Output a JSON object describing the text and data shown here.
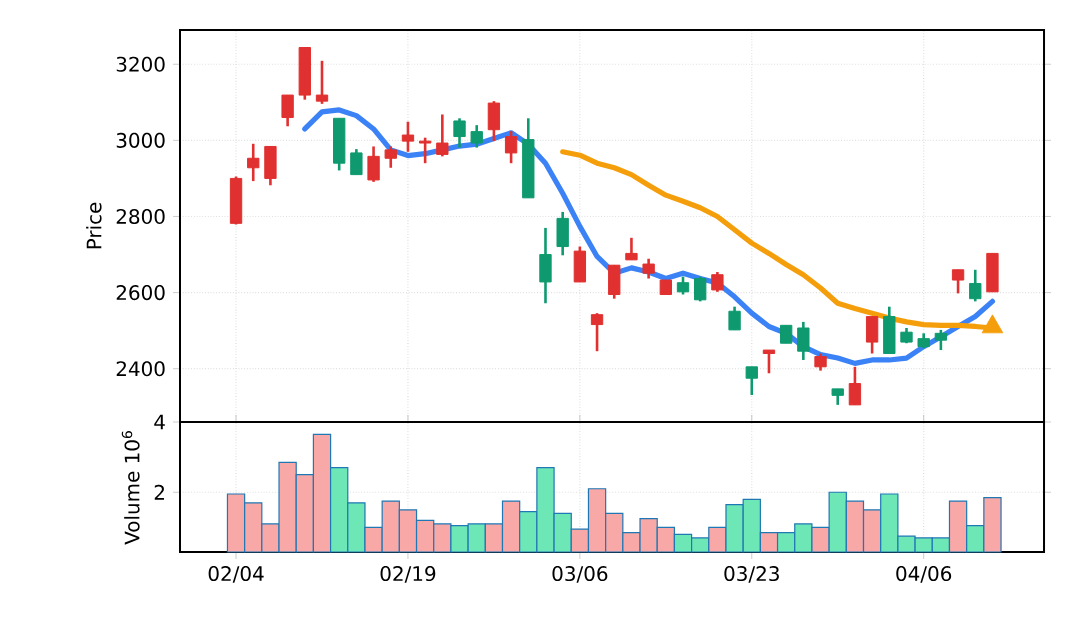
{
  "chart_data": [
    {
      "type": "candlestick",
      "categories": [
        null,
        null,
        null,
        null,
        null,
        null,
        null,
        null,
        null,
        null,
        null,
        null,
        null,
        null,
        null,
        null,
        null,
        null,
        null,
        null,
        null,
        null,
        null,
        null,
        null,
        null,
        null,
        null,
        null,
        null,
        null,
        null,
        null,
        null,
        null,
        null,
        null,
        null,
        null,
        null,
        null,
        null,
        null,
        null,
        null
      ],
      "ohlc": [
        [
          2782,
          2905,
          2779,
          2900
        ],
        [
          2928,
          2991,
          2893,
          2953
        ],
        [
          2900,
          2984,
          2882,
          2984
        ],
        [
          3060,
          3119,
          3037,
          3119
        ],
        [
          3119,
          3244,
          3107,
          3244
        ],
        [
          3103,
          3209,
          3096,
          3119
        ],
        [
          3058,
          3058,
          2921,
          2940
        ],
        [
          2967,
          2977,
          2910,
          2910
        ],
        [
          2896,
          2984,
          2891,
          2958
        ],
        [
          2953,
          2984,
          2928,
          2975
        ],
        [
          2998,
          3049,
          2970,
          3014
        ],
        [
          2993,
          3007,
          2940,
          2998
        ],
        [
          2963,
          3068,
          2958,
          2993
        ],
        [
          3051,
          3058,
          2981,
          3010
        ],
        [
          3023,
          3040,
          2981,
          2993
        ],
        [
          3028,
          3103,
          2998,
          3098
        ],
        [
          2967,
          3024,
          2940,
          3010
        ],
        [
          3002,
          3058,
          2849,
          2849
        ],
        [
          2700,
          2770,
          2572,
          2628
        ],
        [
          2795,
          2812,
          2698,
          2721
        ],
        [
          2628,
          2721,
          2628,
          2709
        ],
        [
          2516,
          2546,
          2446,
          2542
        ],
        [
          2595,
          2672,
          2584,
          2672
        ],
        [
          2686,
          2744,
          2686,
          2703
        ],
        [
          2651,
          2689,
          2637,
          2675
        ],
        [
          2595,
          2633,
          2595,
          2633
        ],
        [
          2626,
          2642,
          2595,
          2602
        ],
        [
          2637,
          2642,
          2577,
          2581
        ],
        [
          2607,
          2654,
          2602,
          2647
        ],
        [
          2551,
          2563,
          2502,
          2502
        ],
        [
          2405,
          2405,
          2331,
          2375
        ],
        [
          2440,
          2449,
          2388,
          2449
        ],
        [
          2514,
          2514,
          2467,
          2467
        ],
        [
          2507,
          2523,
          2423,
          2446
        ],
        [
          2405,
          2440,
          2395,
          2432
        ],
        [
          2347,
          2347,
          2305,
          2330
        ],
        [
          2305,
          2405,
          2305,
          2361
        ],
        [
          2470,
          2537,
          2440,
          2537
        ],
        [
          2537,
          2563,
          2440,
          2440
        ],
        [
          2496,
          2507,
          2467,
          2470
        ],
        [
          2479,
          2493,
          2454,
          2458
        ],
        [
          2493,
          2502,
          2449,
          2475
        ],
        [
          2633,
          2660,
          2598,
          2660
        ],
        [
          2624,
          2660,
          2577,
          2584
        ],
        [
          2602,
          2703,
          2602,
          2703
        ]
      ],
      "colors": [
        "#e0302f",
        "#e0302f",
        "#e0302f",
        "#e0302f",
        "#e0302f",
        "#e0302f",
        "#0e9a6e",
        "#0e9a6e",
        "#e0302f",
        "#e0302f",
        "#e0302f",
        "#e0302f",
        "#e0302f",
        "#0e9a6e",
        "#0e9a6e",
        "#e0302f",
        "#e0302f",
        "#0e9a6e",
        "#0e9a6e",
        "#0e9a6e",
        "#e0302f",
        "#e0302f",
        "#e0302f",
        "#e0302f",
        "#e0302f",
        "#e0302f",
        "#0e9a6e",
        "#0e9a6e",
        "#e0302f",
        "#0e9a6e",
        "#0e9a6e",
        "#e0302f",
        "#0e9a6e",
        "#0e9a6e",
        "#e0302f",
        "#0e9a6e",
        "#e0302f",
        "#e0302f",
        "#0e9a6e",
        "#0e9a6e",
        "#0e9a6e",
        "#0e9a6e",
        "#e0302f",
        "#0e9a6e",
        "#e0302f"
      ],
      "ylabel": "Price",
      "ylim": [
        2260,
        3290
      ],
      "yticks": [
        2400,
        2600,
        2800,
        3000,
        3200
      ],
      "grid": true,
      "tick_labels": "y",
      "series": [
        {
          "type": "line",
          "color": "#3b82f6",
          "values": [
            null,
            null,
            null,
            null,
            3030,
            3075,
            3080,
            3065,
            3030,
            2975,
            2960,
            2965,
            2975,
            2985,
            2990,
            3005,
            3020,
            2990,
            2940,
            2861,
            2774,
            2695,
            2651,
            2665,
            2654,
            2637,
            2651,
            2637,
            2625,
            2589,
            2546,
            2511,
            2493,
            2458,
            2437,
            2428,
            2414,
            2423,
            2423,
            2428,
            2458,
            2484,
            2511,
            2537,
            2577
          ]
        },
        {
          "type": "line",
          "color": "#f59e0b",
          "values": [
            null,
            null,
            null,
            null,
            null,
            null,
            null,
            null,
            null,
            null,
            null,
            null,
            null,
            null,
            null,
            null,
            null,
            null,
            null,
            2970,
            2961,
            2940,
            2928,
            2910,
            2882,
            2856,
            2840,
            2823,
            2800,
            2765,
            2730,
            2703,
            2674,
            2647,
            2612,
            2572,
            2558,
            2546,
            2533,
            2523,
            2516,
            2514,
            2514,
            2511,
            2507
          ]
        },
        {
          "type": "scatter",
          "color": "#f59e0b",
          "marker": "triangle",
          "values": [
            null,
            null,
            null,
            null,
            null,
            null,
            null,
            null,
            null,
            null,
            null,
            null,
            null,
            null,
            null,
            null,
            null,
            null,
            null,
            null,
            null,
            null,
            null,
            null,
            null,
            null,
            null,
            null,
            null,
            null,
            null,
            null,
            null,
            null,
            null,
            null,
            null,
            null,
            null,
            null,
            null,
            null,
            null,
            null,
            2510
          ]
        }
      ]
    },
    {
      "type": "bar",
      "categories": [
        "02/04",
        null,
        null,
        null,
        null,
        null,
        null,
        null,
        null,
        null,
        "02/19",
        null,
        null,
        null,
        null,
        null,
        null,
        null,
        null,
        null,
        "03/06",
        null,
        null,
        null,
        null,
        null,
        null,
        null,
        null,
        null,
        "03/23",
        null,
        null,
        null,
        null,
        null,
        null,
        null,
        null,
        null,
        "04/06",
        null,
        null,
        null,
        null
      ],
      "values": [
        1.95,
        1.7,
        1.1,
        2.85,
        2.5,
        3.65,
        2.7,
        1.7,
        1.0,
        1.75,
        1.5,
        1.2,
        1.1,
        1.05,
        1.1,
        1.1,
        1.75,
        1.45,
        2.7,
        1.4,
        0.95,
        2.1,
        1.4,
        0.85,
        1.25,
        1.0,
        0.8,
        0.7,
        1.0,
        1.65,
        1.8,
        0.85,
        0.85,
        1.1,
        1.0,
        2.0,
        1.75,
        1.5,
        1.95,
        0.75,
        0.7,
        0.7,
        1.75,
        1.05,
        1.85
      ],
      "colors": [
        "#f9a8a8",
        "#f9a8a8",
        "#f9a8a8",
        "#f9a8a8",
        "#f9a8a8",
        "#f9a8a8",
        "#6ee7b7",
        "#6ee7b7",
        "#f9a8a8",
        "#f9a8a8",
        "#f9a8a8",
        "#f9a8a8",
        "#f9a8a8",
        "#6ee7b7",
        "#6ee7b7",
        "#f9a8a8",
        "#f9a8a8",
        "#6ee7b7",
        "#6ee7b7",
        "#6ee7b7",
        "#f9a8a8",
        "#f9a8a8",
        "#f9a8a8",
        "#f9a8a8",
        "#f9a8a8",
        "#f9a8a8",
        "#6ee7b7",
        "#6ee7b7",
        "#f9a8a8",
        "#6ee7b7",
        "#6ee7b7",
        "#f9a8a8",
        "#6ee7b7",
        "#6ee7b7",
        "#f9a8a8",
        "#6ee7b7",
        "#f9a8a8",
        "#f9a8a8",
        "#6ee7b7",
        "#6ee7b7",
        "#6ee7b7",
        "#6ee7b7",
        "#f9a8a8",
        "#6ee7b7",
        "#f9a8a8"
      ],
      "ylabel": "Volume  10$^{6}$",
      "ylim": [
        0.3,
        4
      ],
      "yticks": [
        2,
        4
      ],
      "grid": true
    }
  ]
}
